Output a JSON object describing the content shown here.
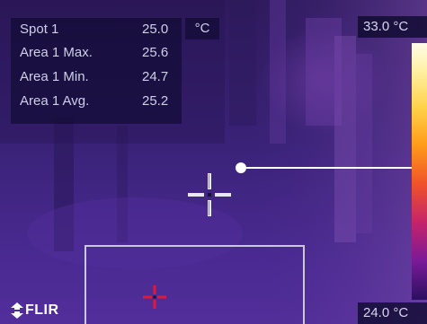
{
  "measurements": [
    {
      "label": "Spot 1",
      "value": "25.0"
    },
    {
      "label": "Area 1 Max.",
      "value": "25.6"
    },
    {
      "label": "Area 1 Min.",
      "value": "24.7"
    },
    {
      "label": "Area 1 Avg.",
      "value": "25.2"
    }
  ],
  "unit": "°C",
  "scale": {
    "max_label": "33.0 °C",
    "min_label": "24.0 °C",
    "palette": [
      "#fffbe8",
      "#fff2a8",
      "#ffd24a",
      "#ff9a1a",
      "#f0522a",
      "#c4236a",
      "#7a1a98",
      "#2a1060"
    ]
  },
  "logo": {
    "text": "FLIR",
    "color": "#ffffff"
  },
  "colors": {
    "area_marker": "#c8c8de",
    "area_spot_marker": "#e0183a",
    "spot_marker": "#e8e8f0"
  }
}
